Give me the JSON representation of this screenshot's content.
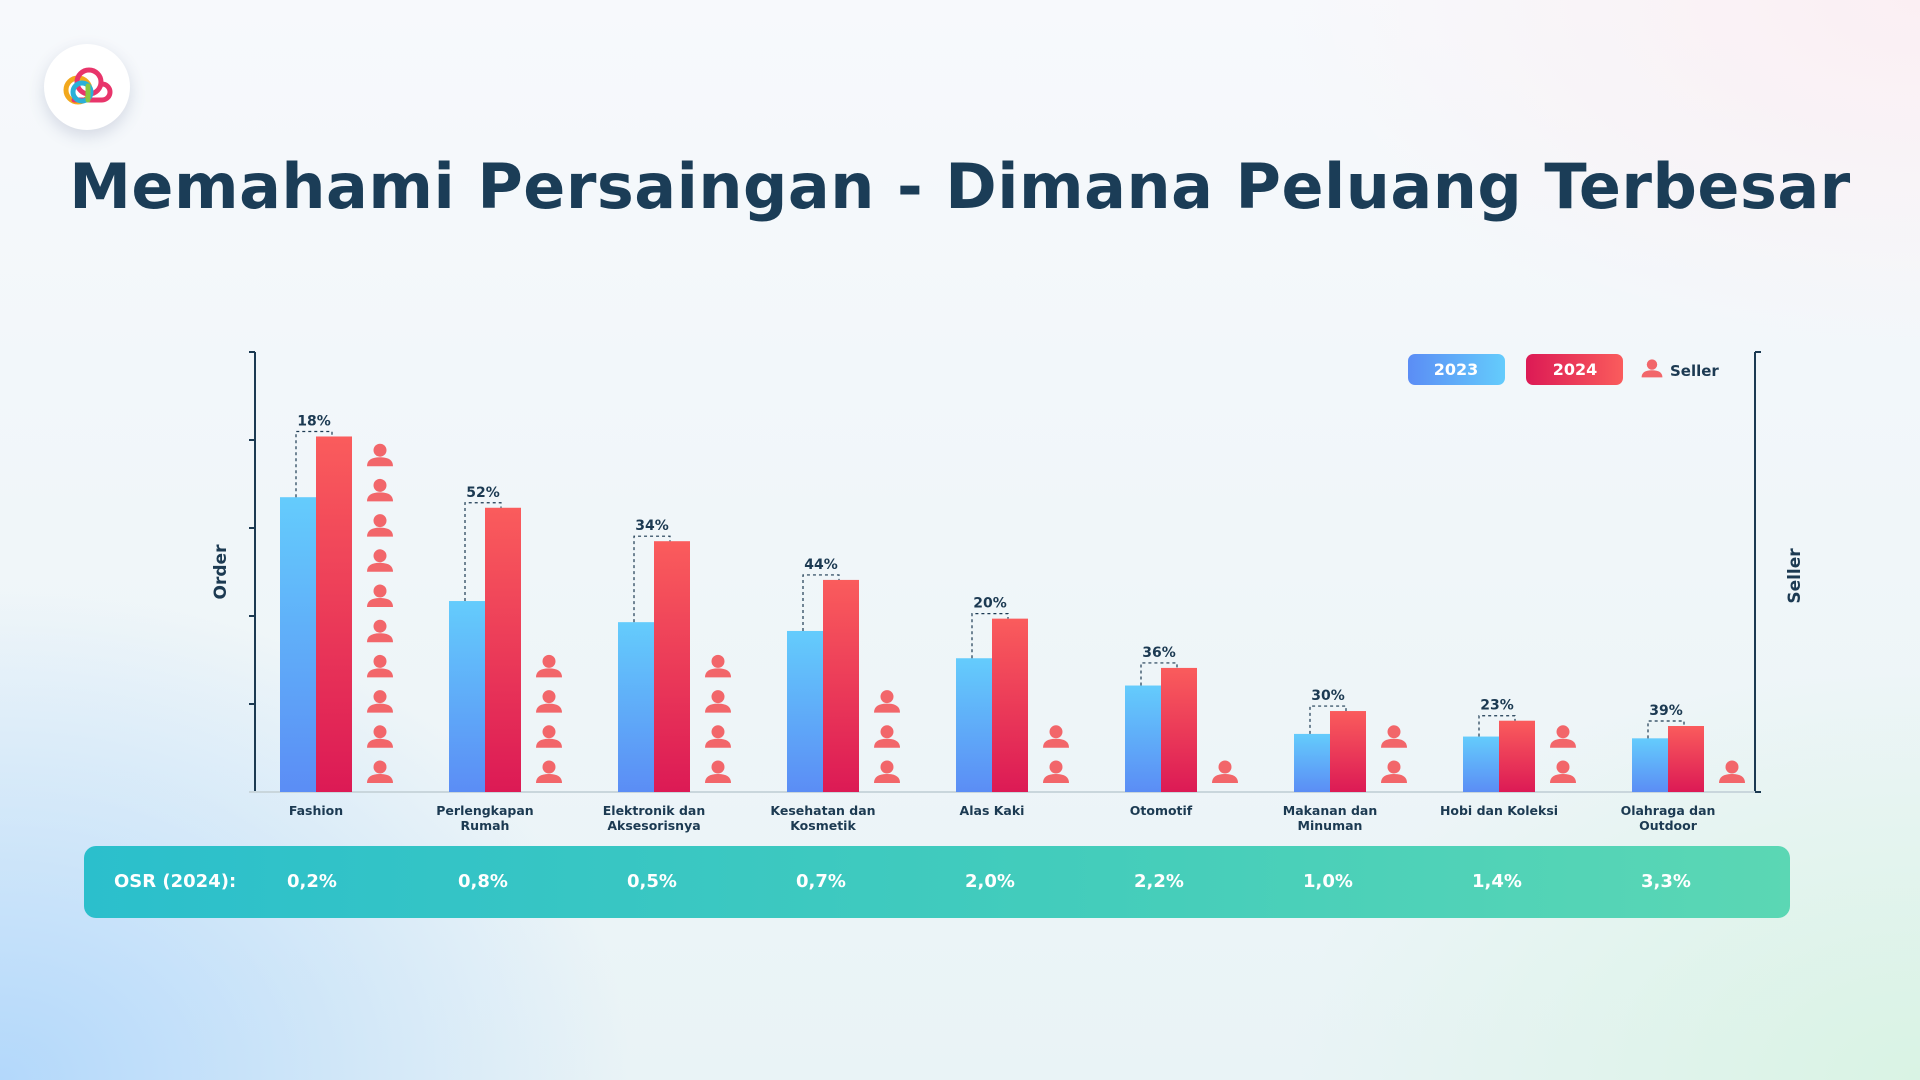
{
  "slide": {
    "title": "Memahami Persaingan - Dimana Peluang Terbesar"
  },
  "colors": {
    "bar_2023_top": "#64ccfc",
    "bar_2023_bottom": "#5b8df5",
    "bar_2024_top": "#fa5c5c",
    "bar_2024_bottom": "#dc1a55",
    "seller_icon": "#f2666a",
    "axis": "#1c3a52",
    "osr_bar": "#3cc8c2"
  },
  "osr": {
    "label": "OSR (2024):",
    "values": [
      "0,2%",
      "0,8%",
      "0,5%",
      "0,7%",
      "2,0%",
      "2,2%",
      "1,0%",
      "1,4%",
      "3,3%"
    ]
  },
  "chart_data": {
    "type": "bar",
    "categories": [
      [
        "Fashion"
      ],
      [
        "Perlengkapan",
        "Rumah"
      ],
      [
        "Elektronik dan",
        "Aksesorisnya"
      ],
      [
        "Kesehatan dan",
        "Kosmetik"
      ],
      [
        "Alas Kaki"
      ],
      [
        "Otomotif"
      ],
      [
        "Makanan dan",
        "Minuman"
      ],
      [
        "Hobi dan Koleksi"
      ],
      [
        "Olahraga dan",
        "Outdoor"
      ]
    ],
    "series": [
      {
        "name": "2023",
        "values": [
          3.35,
          2.17,
          1.93,
          1.83,
          1.52,
          1.21,
          0.66,
          0.63,
          0.61
        ]
      },
      {
        "name": "2024",
        "values": [
          4.04,
          3.23,
          2.85,
          2.41,
          1.97,
          1.41,
          0.92,
          0.81,
          0.75
        ]
      }
    ],
    "growth_labels": [
      "18%",
      "52%",
      "34%",
      "44%",
      "20%",
      "36%",
      "30%",
      "23%",
      "39%"
    ],
    "seller_icons": [
      10,
      4,
      4,
      3,
      2,
      1,
      2,
      2,
      1
    ],
    "seller_legend": "Seller",
    "ylabel": "Order",
    "y2label": "Seller",
    "ylim": [
      0,
      5
    ],
    "legend": "top-right",
    "grid": false
  }
}
